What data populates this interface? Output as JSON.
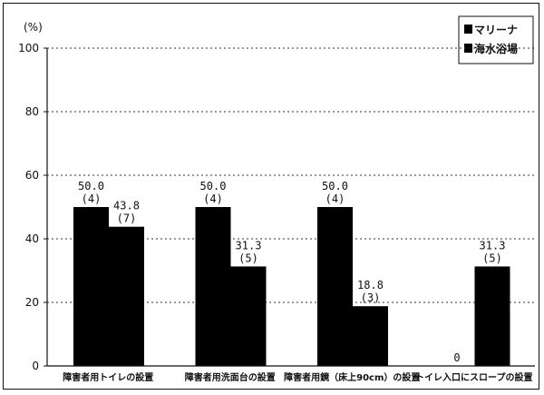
{
  "chart_data": {
    "type": "bar",
    "unit": "(%)",
    "ylim": [
      0,
      100
    ],
    "yticks": [
      0,
      20,
      40,
      60,
      80,
      100
    ],
    "grid": true,
    "legend_position": "top-right",
    "categories": [
      "障害者用トイレの設置",
      "障害者用洗面台の設置",
      "障害者用鏡（床上90cm）の設置",
      "トイレ入口にスロープの設置"
    ],
    "series": [
      {
        "name": "マリーナ",
        "color": "#000000",
        "values": [
          50.0,
          50.0,
          50.0,
          0
        ],
        "value_labels": [
          "50.0",
          "50.0",
          "50.0",
          "0"
        ],
        "count_labels": [
          "(4)",
          "(4)",
          "(4)",
          ""
        ]
      },
      {
        "name": "海水浴場",
        "color": "#000000",
        "values": [
          43.8,
          31.3,
          18.8,
          31.3
        ],
        "value_labels": [
          "43.8",
          "31.3",
          "18.8",
          "31.3"
        ],
        "count_labels": [
          "(7)",
          "(5)",
          "(3)",
          "(5)"
        ]
      }
    ]
  }
}
